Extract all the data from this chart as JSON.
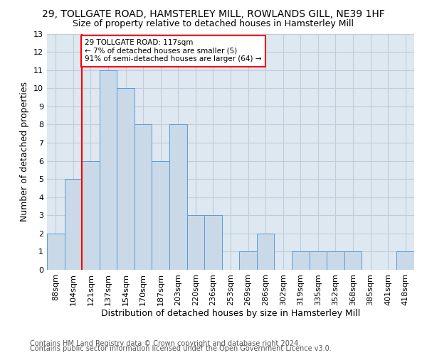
{
  "title1": "29, TOLLGATE ROAD, HAMSTERLEY MILL, ROWLANDS GILL, NE39 1HF",
  "title2": "Size of property relative to detached houses in Hamsterley Mill",
  "xlabel": "Distribution of detached houses by size in Hamsterley Mill",
  "ylabel": "Number of detached properties",
  "categories": [
    "88sqm",
    "104sqm",
    "121sqm",
    "137sqm",
    "154sqm",
    "170sqm",
    "187sqm",
    "203sqm",
    "220sqm",
    "236sqm",
    "253sqm",
    "269sqm",
    "286sqm",
    "302sqm",
    "319sqm",
    "335sqm",
    "352sqm",
    "368sqm",
    "385sqm",
    "401sqm",
    "418sqm"
  ],
  "values": [
    2,
    5,
    6,
    11,
    10,
    8,
    6,
    8,
    3,
    3,
    0,
    1,
    2,
    0,
    1,
    1,
    1,
    1,
    0,
    0,
    1
  ],
  "bar_color": "#c9d9e8",
  "bar_edge_color": "#5b9bd5",
  "highlight_color": "#ff0000",
  "annotation_text": "29 TOLLGATE ROAD: 117sqm\n← 7% of detached houses are smaller (5)\n91% of semi-detached houses are larger (64) →",
  "annotation_box_color": "#ff0000",
  "ylim": [
    0,
    13
  ],
  "yticks": [
    0,
    1,
    2,
    3,
    4,
    5,
    6,
    7,
    8,
    9,
    10,
    11,
    12,
    13
  ],
  "footer1": "Contains HM Land Registry data © Crown copyright and database right 2024.",
  "footer2": "Contains public sector information licensed under the Open Government Licence v3.0.",
  "bg_color": "#ffffff",
  "grid_color": "#c0ccdb",
  "title1_fontsize": 10,
  "title2_fontsize": 9,
  "axis_fontsize": 9,
  "tick_fontsize": 8,
  "footer_fontsize": 7,
  "axbg_color": "#dde8f0"
}
